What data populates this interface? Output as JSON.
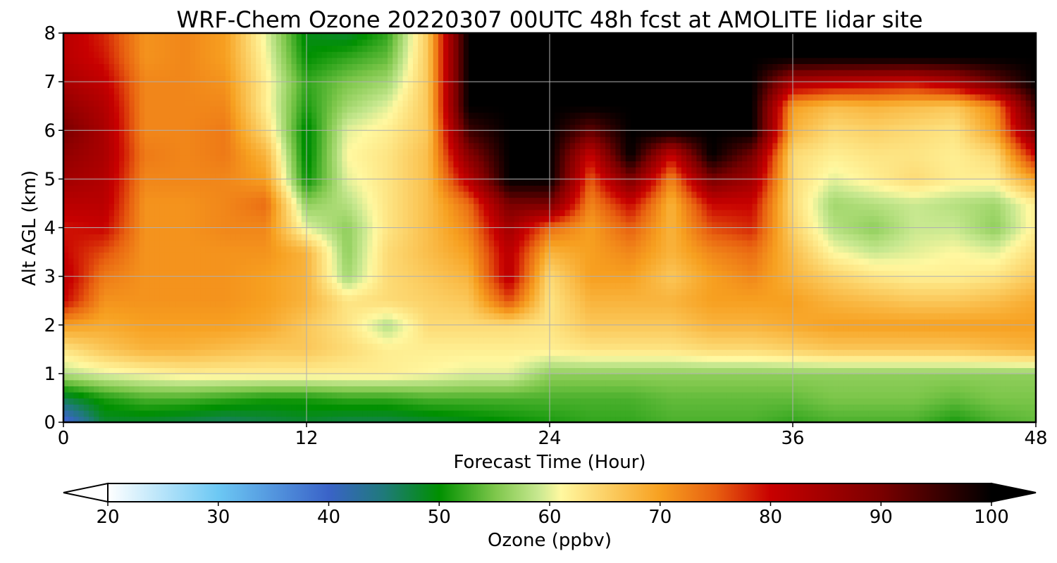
{
  "chart_data": {
    "type": "heatmap",
    "title": "WRF-Chem Ozone  20220307 00UTC 48h fcst at AMOLITE lidar site",
    "xlabel": "Forecast Time (Hour)",
    "ylabel": "Alt AGL (km)",
    "xlim": [
      0,
      48
    ],
    "ylim": [
      0,
      8
    ],
    "xticks": [
      "0",
      "12",
      "24",
      "36",
      "48"
    ],
    "yticks": [
      "0",
      "1",
      "2",
      "3",
      "4",
      "5",
      "6",
      "7",
      "8"
    ],
    "grid": true,
    "colorbar": {
      "label": "Ozone  (ppbv)",
      "min": 20,
      "max": 100,
      "ticks": [
        "20",
        "30",
        "40",
        "50",
        "60",
        "70",
        "80",
        "90",
        "100"
      ],
      "extend": "both",
      "stops": [
        {
          "value": 20,
          "color": "#ffffff"
        },
        {
          "value": 30,
          "color": "#6cc8f4"
        },
        {
          "value": 40,
          "color": "#3a63c8"
        },
        {
          "value": 45,
          "color": "#1f7a7a"
        },
        {
          "value": 50,
          "color": "#009000"
        },
        {
          "value": 55,
          "color": "#7cc64a"
        },
        {
          "value": 59,
          "color": "#c8e890"
        },
        {
          "value": 61,
          "color": "#fff8a0"
        },
        {
          "value": 70,
          "color": "#f7a020"
        },
        {
          "value": 75,
          "color": "#e86010"
        },
        {
          "value": 80,
          "color": "#c80000"
        },
        {
          "value": 90,
          "color": "#7a0000"
        },
        {
          "value": 100,
          "color": "#000000"
        }
      ]
    },
    "x": [
      0,
      2,
      4,
      6,
      8,
      10,
      12,
      14,
      16,
      18,
      20,
      22,
      24,
      26,
      28,
      30,
      32,
      34,
      36,
      38,
      40,
      42,
      44,
      46,
      48
    ],
    "y": [
      0,
      0.5,
      1,
      1.5,
      2,
      2.5,
      3,
      3.5,
      4,
      4.5,
      5,
      5.5,
      6,
      6.5,
      7,
      7.5,
      8
    ],
    "z": [
      [
        38,
        48,
        48,
        47,
        46,
        47,
        48,
        47,
        47,
        48,
        49,
        50,
        51,
        52,
        52,
        53,
        53,
        53,
        52,
        53,
        53,
        53,
        51,
        53,
        54
      ],
      [
        47,
        51,
        53,
        53,
        52,
        51,
        51,
        52,
        52,
        53,
        53,
        53,
        53,
        53,
        53,
        54,
        54,
        54,
        54,
        55,
        55,
        55,
        54,
        55,
        55
      ],
      [
        58,
        60,
        61,
        62,
        62,
        62,
        62,
        62,
        62,
        61,
        60,
        60,
        56,
        56,
        56,
        56,
        56,
        56,
        56,
        56,
        56,
        56,
        56,
        56,
        56
      ],
      [
        63,
        66,
        68,
        68,
        67,
        66,
        66,
        64,
        62,
        62,
        62,
        62,
        62,
        63,
        63,
        63,
        64,
        64,
        65,
        66,
        66,
        66,
        66,
        67,
        68
      ],
      [
        70,
        69,
        70,
        70,
        70,
        69,
        66,
        63,
        58,
        64,
        64,
        64,
        63,
        66,
        66,
        66,
        68,
        68,
        69,
        70,
        70,
        70,
        70,
        70,
        70
      ],
      [
        80,
        71,
        71,
        71,
        71,
        70,
        68,
        63,
        64,
        65,
        66,
        76,
        63,
        68,
        68,
        68,
        70,
        70,
        70,
        68,
        67,
        66,
        66,
        67,
        69
      ],
      [
        82,
        73,
        71,
        71,
        71,
        70,
        68,
        57,
        64,
        66,
        68,
        82,
        64,
        70,
        70,
        66,
        70,
        72,
        68,
        65,
        63,
        62,
        62,
        63,
        66
      ],
      [
        80,
        76,
        71,
        71,
        71,
        71,
        68,
        56,
        64,
        67,
        70,
        82,
        68,
        70,
        72,
        68,
        72,
        74,
        67,
        61,
        59,
        60,
        61,
        60,
        64
      ],
      [
        79,
        80,
        71,
        71,
        72,
        72,
        60,
        56,
        63,
        67,
        72,
        85,
        74,
        70,
        75,
        68,
        76,
        78,
        65,
        58,
        56,
        59,
        59,
        56,
        62
      ],
      [
        82,
        82,
        71,
        71,
        72,
        74,
        56,
        58,
        63,
        67,
        74,
        90,
        90,
        72,
        80,
        68,
        80,
        80,
        64,
        57,
        58,
        59,
        58,
        57,
        62
      ],
      [
        85,
        83,
        72,
        72,
        72,
        70,
        50,
        60,
        63,
        67,
        82,
        100,
        100,
        75,
        90,
        72,
        90,
        85,
        64,
        60,
        62,
        64,
        62,
        62,
        70
      ],
      [
        87,
        84,
        73,
        72,
        73,
        68,
        49,
        61,
        63,
        67,
        88,
        100,
        100,
        80,
        100,
        80,
        100,
        90,
        64,
        62,
        63,
        63,
        62,
        64,
        80
      ],
      [
        90,
        84,
        72,
        72,
        73,
        64,
        49,
        60,
        62,
        66,
        95,
        100,
        100,
        92,
        100,
        100,
        100,
        100,
        68,
        64,
        65,
        64,
        63,
        70,
        90
      ],
      [
        87,
        83,
        72,
        72,
        72,
        62,
        51,
        57,
        60,
        66,
        100,
        100,
        100,
        100,
        100,
        100,
        100,
        100,
        70,
        67,
        68,
        67,
        66,
        72,
        95
      ],
      [
        84,
        81,
        72,
        72,
        71,
        62,
        52,
        55,
        57,
        66,
        100,
        100,
        100,
        100,
        100,
        100,
        100,
        100,
        84,
        82,
        81,
        80,
        84,
        92,
        100
      ],
      [
        82,
        79,
        71,
        72,
        70,
        61,
        50,
        52,
        54,
        66,
        100,
        100,
        100,
        100,
        100,
        100,
        100,
        100,
        100,
        100,
        100,
        100,
        100,
        100,
        100
      ],
      [
        82,
        78,
        71,
        72,
        70,
        60,
        49,
        48,
        52,
        66,
        100,
        100,
        100,
        100,
        100,
        100,
        100,
        100,
        100,
        100,
        100,
        100,
        100,
        100,
        100
      ]
    ]
  }
}
